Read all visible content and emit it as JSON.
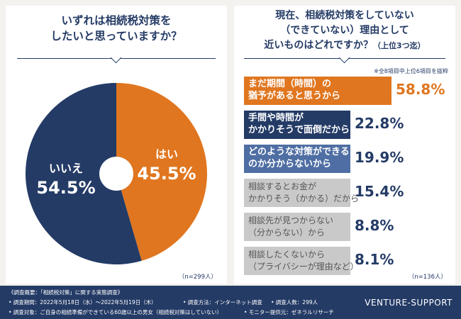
{
  "left_question": {
    "line1": "いずれは相続税対策を",
    "line2": "したいと思っていますか？"
  },
  "right_question": {
    "line1": "現在、相続税対策をしていない",
    "line2": "（できていない）理由として",
    "line3": "近いものはどれですか？",
    "line3_small": "（上位3つ迄）"
  },
  "note": "※全8項目中上位6項目を抜粋",
  "chart_data": [
    {
      "type": "pie",
      "labels": [
        "はい",
        "いいえ"
      ],
      "values": [
        45.5,
        54.5
      ],
      "value_labels": [
        "45.5%",
        "54.5%"
      ],
      "colors": [
        "#e0761f",
        "#243b66"
      ],
      "n": "（n=299人）"
    },
    {
      "type": "bar",
      "categories": [
        [
          "まだ期間（時間）の",
          "猶予があると思うから"
        ],
        [
          "手間や時間が",
          "かかりそうで面倒だから"
        ],
        [
          "どのような対策ができる",
          "のか分からないから"
        ],
        [
          "相談するとお金が",
          "かかりそう（かかる）だから"
        ],
        [
          "相談先が見つからない",
          "（分からない）から"
        ],
        [
          "相談したくないから",
          "（プライバシーが理由など）"
        ]
      ],
      "values": [
        58.8,
        22.8,
        19.9,
        15.4,
        8.8,
        8.1
      ],
      "value_labels": [
        "58.8%",
        "22.8%",
        "19.9%",
        "15.4%",
        "8.8%",
        "8.1%"
      ],
      "colors": [
        "#e0761f",
        "#243b66",
        "#4f6ea3",
        "#c9c9c9",
        "#c9c9c9",
        "#c9c9c9"
      ],
      "n": "（n=136人）"
    }
  ],
  "footer": {
    "line1": "《調査概要：「相続税対策」に関する実態調査》",
    "line2a": "• 調査期間：2022年5月18日（水）～2022年5月19日（木）",
    "line2b": "• 調査方法：インターネット調査",
    "line2c": "• 調査人数：299人",
    "line3a": "• 調査対象：ご自身の相続準備ができている60歳以上の男女（相続税対策はしていない）",
    "line3b": "• モニター提供元：ゼネラルリサーチ",
    "brand": "VENTURE-SUPPORT"
  }
}
